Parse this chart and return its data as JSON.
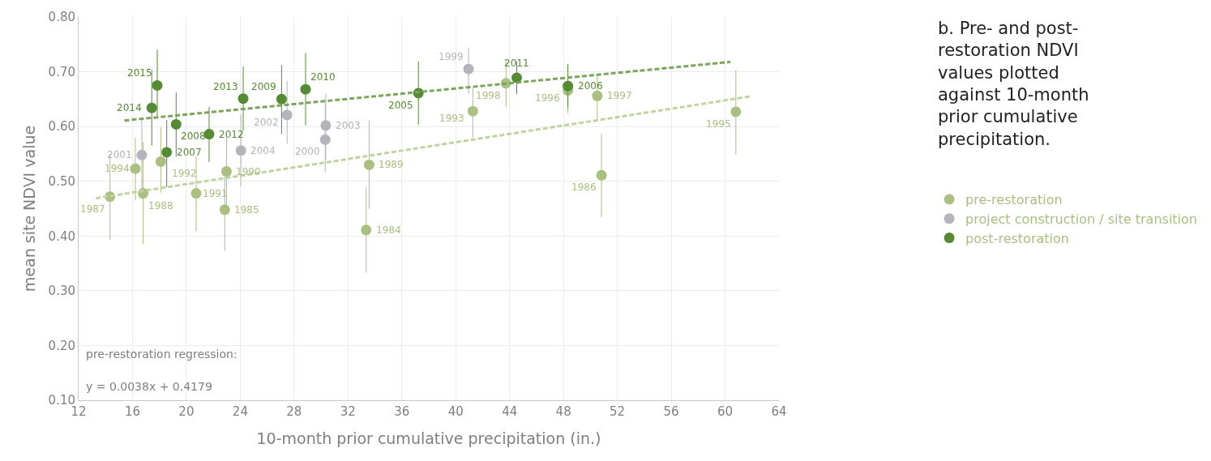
{
  "chart_data": {
    "type": "scatter",
    "title": "b. Pre- and post-restoration NDVI values plotted against 10-month prior cumulative precipitation.",
    "xlabel": "10-month prior cumulative precipitation (in.)",
    "ylabel": "mean site NDVI value",
    "xlim": [
      12,
      64
    ],
    "xticks": [
      12,
      16,
      20,
      24,
      28,
      32,
      36,
      40,
      44,
      48,
      52,
      56,
      60,
      64
    ],
    "ylim": [
      0.1,
      0.8
    ],
    "yticks": [
      {
        "value": 0.1,
        "label": "0.10"
      },
      {
        "value": 0.2,
        "label": "0.20"
      },
      {
        "value": 0.3,
        "label": "0.30"
      },
      {
        "value": 0.4,
        "label": "0.40"
      },
      {
        "value": 0.5,
        "label": "0.50"
      },
      {
        "value": 0.6,
        "label": "0.60"
      },
      {
        "value": 0.7,
        "label": "0.70"
      },
      {
        "value": 0.8,
        "label": "0.80"
      }
    ],
    "grid": true,
    "legend": "right",
    "marker": "circle",
    "series": [
      {
        "name": "pre-restoration",
        "color": "#a9c080",
        "x": [
          33.35,
          22.85,
          50.82,
          14.33,
          16.79,
          33.57,
          22.98,
          20.73,
          18.1,
          41.27,
          16.21,
          60.8,
          48.33,
          50.51,
          43.73
        ],
        "values": [
          0.411,
          0.448,
          0.511,
          0.472,
          0.478,
          0.53,
          0.518,
          0.478,
          0.536,
          0.628,
          0.523,
          0.627,
          0.666,
          0.656,
          0.679
        ],
        "errors": [
          [
            0.333,
            0.489
          ],
          [
            0.373,
            0.508
          ],
          [
            0.434,
            0.587
          ],
          [
            0.393,
            0.55
          ],
          [
            0.385,
            0.571
          ],
          [
            0.449,
            0.611
          ],
          [
            0.45,
            0.585
          ],
          [
            0.409,
            0.545
          ],
          [
            0.479,
            0.599
          ],
          [
            0.58,
            0.67
          ],
          [
            0.465,
            0.58
          ],
          [
            0.549,
            0.703
          ],
          [
            0.624,
            0.706
          ],
          [
            0.613,
            0.695
          ],
          [
            0.635,
            0.722
          ]
        ]
      },
      {
        "name": "project construction / site transition",
        "color": "#b4b4bc",
        "x": [
          40.95,
          30.31,
          16.69,
          27.48,
          30.35,
          24.05
        ],
        "values": [
          0.705,
          0.576,
          0.548,
          0.621,
          0.602,
          0.556
        ],
        "errors": [
          [
            0.66,
            0.744
          ],
          [
            0.517,
            0.64
          ],
          [
            0.48,
            0.615
          ],
          [
            0.569,
            0.683
          ],
          [
            0.54,
            0.66
          ],
          [
            0.491,
            0.621
          ]
        ]
      },
      {
        "name": "post-restoration",
        "color": "#548b34",
        "x": [
          37.23,
          48.33,
          18.54,
          19.24,
          27.07,
          28.85,
          44.53,
          21.69,
          24.22,
          17.43,
          17.84
        ],
        "values": [
          0.661,
          0.674,
          0.553,
          0.604,
          0.65,
          0.668,
          0.689,
          0.586,
          0.651,
          0.634,
          0.675
        ],
        "errors": [
          [
            0.603,
            0.719
          ],
          [
            0.635,
            0.714
          ],
          [
            0.489,
            0.612
          ],
          [
            0.545,
            0.662
          ],
          [
            0.586,
            0.712
          ],
          [
            0.602,
            0.734
          ],
          [
            0.659,
            0.719
          ],
          [
            0.535,
            0.636
          ],
          [
            0.592,
            0.71
          ],
          [
            0.565,
            0.703
          ],
          [
            0.617,
            0.74
          ]
        ]
      },
      {
        "type": "line",
        "color": "#c0d4a0",
        "line_style": "dashed",
        "marker": "none",
        "x": [
          13.28,
          61.89
        ],
        "values": [
          0.469,
          0.655
        ]
      },
      {
        "type": "line",
        "color": "#7aa65a",
        "line_style": "dashed",
        "marker": "none",
        "x": [
          15.4,
          60.4
        ],
        "values": [
          0.611,
          0.718
        ]
      }
    ],
    "annotations": [
      {
        "text": "1984",
        "x": 33.35,
        "y": 0.411
      },
      {
        "text": "1985",
        "x": 22.85,
        "y": 0.448
      },
      {
        "text": "1986",
        "x": 50.82,
        "y": 0.511
      },
      {
        "text": "1987",
        "x": 14.33,
        "y": 0.472
      },
      {
        "text": "1988",
        "x": 16.79,
        "y": 0.478
      },
      {
        "text": "1989",
        "x": 33.57,
        "y": 0.53
      },
      {
        "text": "1990",
        "x": 22.98,
        "y": 0.518
      },
      {
        "text": "1991",
        "x": 20.73,
        "y": 0.478
      },
      {
        "text": "1992",
        "x": 18.1,
        "y": 0.536
      },
      {
        "text": "1993",
        "x": 41.27,
        "y": 0.628
      },
      {
        "text": "1994",
        "x": 16.21,
        "y": 0.523
      },
      {
        "text": "1995",
        "x": 60.8,
        "y": 0.627
      },
      {
        "text": "1996",
        "x": 48.33,
        "y": 0.666
      },
      {
        "text": "1997",
        "x": 50.51,
        "y": 0.656
      },
      {
        "text": "1998",
        "x": 43.73,
        "y": 0.679
      },
      {
        "text": "1999",
        "x": 40.95,
        "y": 0.705
      },
      {
        "text": "2000",
        "x": 30.31,
        "y": 0.576
      },
      {
        "text": "2001",
        "x": 16.69,
        "y": 0.548
      },
      {
        "text": "2002",
        "x": 27.48,
        "y": 0.621
      },
      {
        "text": "2003",
        "x": 30.35,
        "y": 0.602
      },
      {
        "text": "2004",
        "x": 24.05,
        "y": 0.556
      },
      {
        "text": "2005",
        "x": 37.23,
        "y": 0.661
      },
      {
        "text": "2006",
        "x": 48.33,
        "y": 0.674
      },
      {
        "text": "2007",
        "x": 18.54,
        "y": 0.553
      },
      {
        "text": "2008",
        "x": 19.24,
        "y": 0.604
      },
      {
        "text": "2009",
        "x": 27.07,
        "y": 0.65
      },
      {
        "text": "2010",
        "x": 28.85,
        "y": 0.668
      },
      {
        "text": "2011",
        "x": 44.53,
        "y": 0.689
      },
      {
        "text": "2012",
        "x": 21.69,
        "y": 0.586
      },
      {
        "text": "2013",
        "x": 24.22,
        "y": 0.651
      },
      {
        "text": "2014",
        "x": 17.43,
        "y": 0.634
      },
      {
        "text": "2015",
        "x": 17.84,
        "y": 0.675
      },
      "pre-restoration regression:",
      "y = 0.0038x + 0.4179"
    ]
  }
}
